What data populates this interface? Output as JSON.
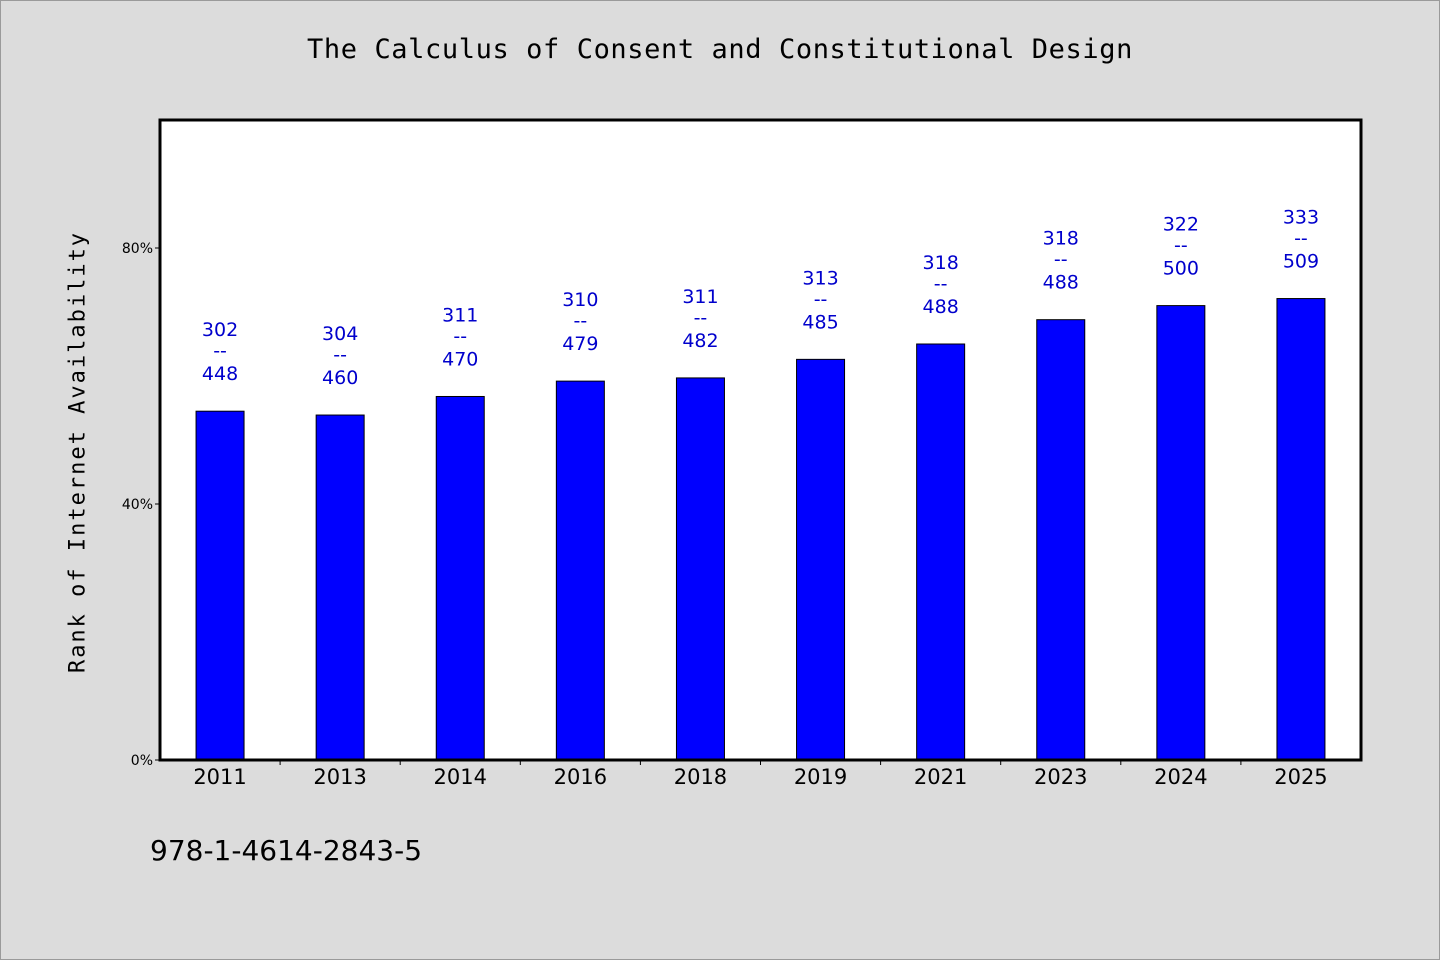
{
  "chart_data": {
    "type": "bar",
    "title": "The Calculus of Consent and Constitutional Design",
    "xlabel": "",
    "ylabel": "Rank of Internet Availability",
    "categories": [
      "2011",
      "2013",
      "2014",
      "2016",
      "2018",
      "2019",
      "2021",
      "2023",
      "2024",
      "2025"
    ],
    "values": [
      54.5,
      53.9,
      56.8,
      59.2,
      59.7,
      62.6,
      65.0,
      68.8,
      71.0,
      72.1
    ],
    "value_unit": "%",
    "bar_labels": [
      {
        "top": "302",
        "sep": "--",
        "bottom": "448"
      },
      {
        "top": "304",
        "sep": "--",
        "bottom": "460"
      },
      {
        "top": "311",
        "sep": "--",
        "bottom": "470"
      },
      {
        "top": "310",
        "sep": "--",
        "bottom": "479"
      },
      {
        "top": "311",
        "sep": "--",
        "bottom": "482"
      },
      {
        "top": "313",
        "sep": "--",
        "bottom": "485"
      },
      {
        "top": "318",
        "sep": "--",
        "bottom": "488"
      },
      {
        "top": "318",
        "sep": "--",
        "bottom": "488"
      },
      {
        "top": "322",
        "sep": "--",
        "bottom": "500"
      },
      {
        "top": "333",
        "sep": "--",
        "bottom": "509"
      }
    ],
    "ylim": [
      0,
      100
    ],
    "yticks": [
      {
        "value": 0,
        "label": "0%"
      },
      {
        "value": 40,
        "label": "40%"
      },
      {
        "value": 80,
        "label": "80%"
      }
    ],
    "grid": false,
    "legend": "none",
    "colors": {
      "bar": "#0000ff",
      "bar_label": "#0000cc",
      "background": "#dcdcdc",
      "plot_background": "#ffffff"
    }
  },
  "footer": {
    "isbn": "978-1-4614-2843-5"
  }
}
